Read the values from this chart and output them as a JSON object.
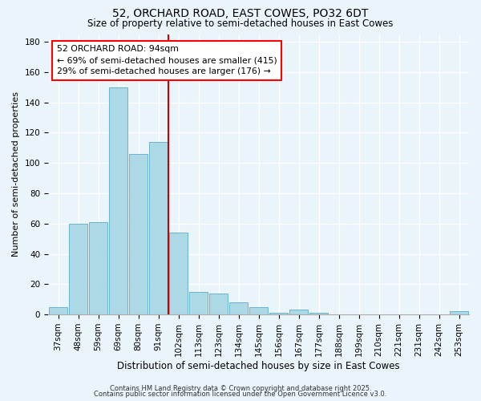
{
  "title": "52, ORCHARD ROAD, EAST COWES, PO32 6DT",
  "subtitle": "Size of property relative to semi-detached houses in East Cowes",
  "xlabel": "Distribution of semi-detached houses by size in East Cowes",
  "ylabel": "Number of semi-detached properties",
  "categories": [
    "37sqm",
    "48sqm",
    "59sqm",
    "69sqm",
    "80sqm",
    "91sqm",
    "102sqm",
    "113sqm",
    "123sqm",
    "134sqm",
    "145sqm",
    "156sqm",
    "167sqm",
    "177sqm",
    "188sqm",
    "199sqm",
    "210sqm",
    "221sqm",
    "231sqm",
    "242sqm",
    "253sqm"
  ],
  "values": [
    5,
    60,
    61,
    150,
    106,
    114,
    54,
    15,
    14,
    8,
    5,
    1,
    3,
    1,
    0,
    0,
    0,
    0,
    0,
    0,
    2
  ],
  "bar_color": "#add8e6",
  "bar_edge_color": "#5aabcf",
  "vline_x": 6.0,
  "vline_color": "#cc0000",
  "annotation_title": "52 ORCHARD ROAD: 94sqm",
  "annotation_line1": "← 69% of semi-detached houses are smaller (415)",
  "annotation_line2": "29% of semi-detached houses are larger (176) →",
  "ylim": [
    0,
    185
  ],
  "yticks": [
    0,
    20,
    40,
    60,
    80,
    100,
    120,
    140,
    160,
    180
  ],
  "footer1": "Contains HM Land Registry data © Crown copyright and database right 2025.",
  "footer2": "Contains public sector information licensed under the Open Government Licence v3.0.",
  "bg_color": "#eaf4fb",
  "grid_color": "#ffffff",
  "title_fontsize": 10,
  "subtitle_fontsize": 8.5,
  "tick_fontsize": 7.5,
  "xlabel_fontsize": 8.5,
  "ylabel_fontsize": 8,
  "annotation_fontsize": 7.8,
  "footer_fontsize": 6
}
